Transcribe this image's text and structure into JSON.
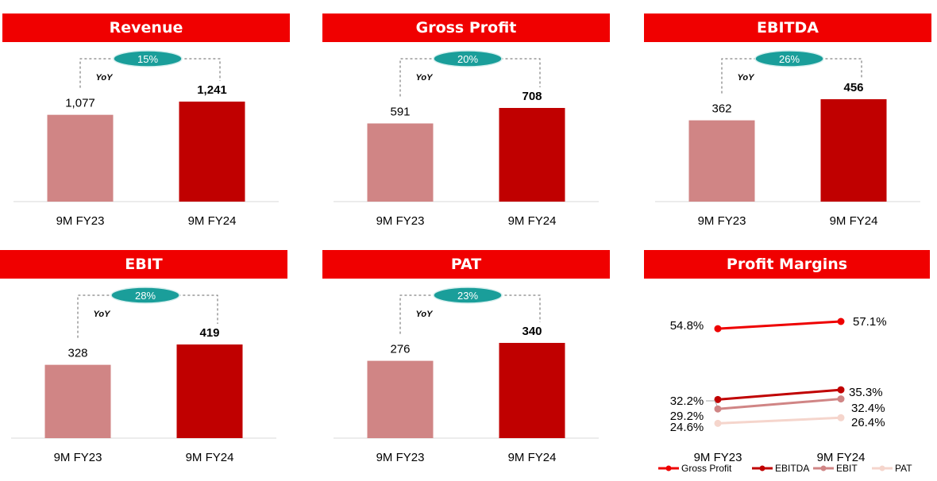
{
  "colors": {
    "header_bg": "#f00000",
    "bar_prev": "#d08585",
    "bar_curr": "#c00000",
    "yoy_badge": "#1a9e9a",
    "gross_profit_line": "#ee0000",
    "ebitda_line": "#c00000",
    "ebit_line": "#d08585",
    "pat_line": "#f5d5cc"
  },
  "yoy_label": "YoY",
  "bar_panels": [
    {
      "title": "Revenue",
      "categories": [
        "9M FY23",
        "9M FY24"
      ],
      "values": [
        1077,
        1241
      ],
      "value_labels": [
        "1,077",
        "1,241"
      ],
      "yoy": "15%"
    },
    {
      "title": "Gross Profit",
      "categories": [
        "9M FY23",
        "9M FY24"
      ],
      "values": [
        591,
        708
      ],
      "value_labels": [
        "591",
        "708"
      ],
      "yoy": "20%"
    },
    {
      "title": "EBITDA",
      "categories": [
        "9M FY23",
        "9M FY24"
      ],
      "values": [
        362,
        456
      ],
      "value_labels": [
        "362",
        "456"
      ],
      "yoy": "26%"
    },
    {
      "title": "EBIT",
      "categories": [
        "9M FY23",
        "9M FY24"
      ],
      "values": [
        328,
        419
      ],
      "value_labels": [
        "328",
        "419"
      ],
      "yoy": "28%"
    },
    {
      "title": "PAT",
      "categories": [
        "9M FY23",
        "9M FY24"
      ],
      "values": [
        276,
        340
      ],
      "value_labels": [
        "276",
        "340"
      ],
      "yoy": "23%"
    }
  ],
  "margins_panel": {
    "title": "Profit Margins"
  },
  "chart_data": [
    {
      "type": "bar",
      "title": "Revenue",
      "categories": [
        "9M FY23",
        "9M FY24"
      ],
      "values": [
        1077,
        1241
      ]
    },
    {
      "type": "bar",
      "title": "Gross Profit",
      "categories": [
        "9M FY23",
        "9M FY24"
      ],
      "values": [
        591,
        708
      ]
    },
    {
      "type": "bar",
      "title": "EBITDA",
      "categories": [
        "9M FY23",
        "9M FY24"
      ],
      "values": [
        362,
        456
      ]
    },
    {
      "type": "bar",
      "title": "EBIT",
      "categories": [
        "9M FY23",
        "9M FY24"
      ],
      "values": [
        328,
        419
      ]
    },
    {
      "type": "bar",
      "title": "PAT",
      "categories": [
        "9M FY23",
        "9M FY24"
      ],
      "values": [
        276,
        340
      ]
    },
    {
      "type": "line",
      "title": "Profit Margins",
      "categories": [
        "9M FY23",
        "9M FY24"
      ],
      "series": [
        {
          "name": "Gross Profit",
          "values": [
            54.8,
            57.1
          ],
          "labels": [
            "54.8%",
            "57.1%"
          ]
        },
        {
          "name": "EBITDA",
          "values": [
            32.2,
            35.3
          ],
          "labels": [
            "32.2%",
            "35.3%"
          ]
        },
        {
          "name": "EBIT",
          "values": [
            29.2,
            32.4
          ],
          "labels": [
            "29.2%",
            "32.4%"
          ]
        },
        {
          "name": "PAT",
          "values": [
            24.6,
            26.4
          ],
          "labels": [
            "24.6%",
            "26.4%"
          ]
        }
      ],
      "legend": "bottom"
    }
  ]
}
